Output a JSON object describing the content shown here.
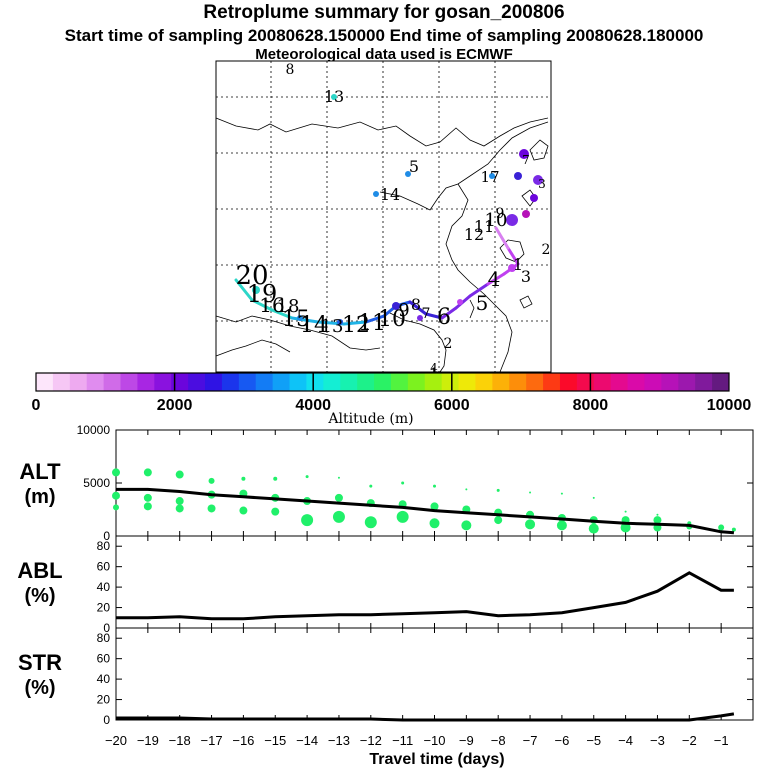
{
  "header": {
    "title": "Retroplume summary for gosan_200806",
    "sampling": "Start time of sampling 20080628.150000     End time of sampling 20080628.180000",
    "met": "Meteorological data used is ECMWF"
  },
  "map": {
    "labels": [
      "8",
      "13",
      "5",
      "14",
      "17",
      "20",
      "19",
      "16",
      "18",
      "15",
      "14",
      "13",
      "12",
      "11",
      "10",
      "9",
      "8",
      "7",
      "6",
      "5",
      "4",
      "3",
      "2",
      "1",
      "12",
      "11",
      "10",
      "9",
      "7",
      "3",
      "2",
      "1",
      "4"
    ],
    "path_colors": [
      "#2cd6c8",
      "#1fb3e6",
      "#1f5ce6",
      "#3a22d6",
      "#7a2ae6",
      "#c040f0",
      "#d880f0"
    ]
  },
  "colorbar": {
    "ticks": [
      "0",
      "2000",
      "4000",
      "6000",
      "8000",
      "10000"
    ],
    "label": "Altitude (m)",
    "colors": [
      "#fde6fb",
      "#f6c7f5",
      "#eeaaf0",
      "#e08cef",
      "#d06be8",
      "#bd48e6",
      "#a826e3",
      "#8a12df",
      "#6b05dc",
      "#4b0de0",
      "#2f13e4",
      "#1b35ec",
      "#1759f2",
      "#137cf5",
      "#10a0f7",
      "#0ec3f7",
      "#11e0ee",
      "#14eed4",
      "#17f1b0",
      "#1df18a",
      "#2af265",
      "#52f33f",
      "#7cf21f",
      "#a6f00f",
      "#cdee0b",
      "#eee908",
      "#fbd208",
      "#fcb108",
      "#fd8e0a",
      "#fd6a0f",
      "#fd3a14",
      "#fb0a2a",
      "#f40a4d",
      "#ec0a6f",
      "#e40a8f",
      "#da0aa9",
      "#cc0cb6",
      "#b612b8",
      "#9c18ae",
      "#801a9c",
      "#641a80"
    ]
  },
  "chart_data": [
    {
      "type": "line",
      "panel": "ALT",
      "ylabel_line1": "ALT",
      "ylabel_line2": "(m)",
      "ylim": [
        0,
        10000
      ],
      "yticks": [
        "10000",
        "5000",
        "0"
      ],
      "ytick_values": [
        10000,
        5000,
        0
      ],
      "x": [
        -20,
        -19,
        -18,
        -17,
        -16,
        -15,
        -14,
        -13,
        -12,
        -11,
        -10,
        -9,
        -8,
        -7,
        -6,
        -5,
        -4,
        -3,
        -2,
        -1,
        -0.6
      ],
      "values": [
        4400,
        4400,
        4200,
        3900,
        3700,
        3500,
        3300,
        3100,
        2900,
        2700,
        2400,
        2200,
        2000,
        1800,
        1600,
        1400,
        1200,
        1100,
        1000,
        400,
        300
      ],
      "dot_series": [
        {
          "name": "upper",
          "x": [
            -20,
            -19,
            -18,
            -17,
            -16,
            -15,
            -14,
            -13,
            -12,
            -11,
            -10,
            -9,
            -8,
            -7,
            -6,
            -5,
            -4,
            -3,
            -2,
            -1,
            -0.6
          ],
          "values": [
            6000,
            6000,
            5800,
            5200,
            5400,
            5400,
            5600,
            5500,
            4700,
            5000,
            4700,
            4400,
            4300,
            4100,
            4000,
            3600,
            2300,
            2000,
            1200,
            900,
            600
          ],
          "sizes": [
            4,
            4,
            4,
            3,
            2,
            2,
            1.5,
            1,
            1.5,
            1.5,
            1.5,
            1,
            1.5,
            1,
            1,
            1,
            1,
            1,
            2,
            2,
            2
          ]
        },
        {
          "name": "mid",
          "x": [
            -20,
            -19,
            -18,
            -17,
            -16,
            -15,
            -14,
            -13,
            -12,
            -11,
            -10,
            -9,
            -8,
            -7,
            -6,
            -5,
            -4,
            -3,
            -2,
            -1
          ],
          "values": [
            3800,
            3600,
            3300,
            3900,
            4000,
            3600,
            3300,
            3600,
            3100,
            3000,
            2800,
            2500,
            2200,
            2000,
            1700,
            1500,
            1500,
            1500,
            900,
            800
          ],
          "sizes": [
            4,
            4,
            4,
            4,
            4,
            4,
            4,
            4,
            4,
            4,
            4,
            4,
            4,
            4,
            4,
            4,
            4,
            4,
            3,
            3
          ]
        },
        {
          "name": "lower",
          "x": [
            -20,
            -19,
            -18,
            -17,
            -16,
            -15,
            -14,
            -13,
            -12,
            -11,
            -10,
            -9,
            -8,
            -7,
            -6,
            -5,
            -4,
            -3
          ],
          "values": [
            2700,
            2800,
            2600,
            2600,
            2400,
            2300,
            1500,
            1800,
            1300,
            1800,
            1200,
            1000,
            1500,
            1100,
            1000,
            700,
            800,
            800
          ],
          "sizes": [
            3,
            4,
            4,
            4,
            4,
            4,
            6,
            6,
            6,
            6,
            5,
            5,
            4,
            5,
            5,
            5,
            5,
            4
          ]
        }
      ]
    },
    {
      "type": "line",
      "panel": "ABL",
      "ylabel_line1": "ABL",
      "ylabel_line2": "(%)",
      "ylim": [
        0,
        90
      ],
      "yticks": [
        "80",
        "60",
        "40",
        "20",
        "0"
      ],
      "ytick_values": [
        80,
        60,
        40,
        20,
        0
      ],
      "x": [
        -20,
        -19,
        -18,
        -17,
        -16,
        -15,
        -14,
        -13,
        -12,
        -11,
        -10,
        -9,
        -8,
        -7,
        -6,
        -5,
        -4,
        -3,
        -2,
        -1,
        -0.6
      ],
      "values": [
        10,
        10,
        11,
        9,
        9,
        11,
        12,
        13,
        13,
        14,
        15,
        16,
        12,
        13,
        15,
        20,
        25,
        36,
        54,
        37,
        37
      ]
    },
    {
      "type": "line",
      "panel": "STR",
      "ylabel_line1": "STR",
      "ylabel_line2": "(%)",
      "ylim": [
        0,
        90
      ],
      "yticks": [
        "80",
        "60",
        "40",
        "20",
        "0"
      ],
      "ytick_values": [
        80,
        60,
        40,
        20,
        0
      ],
      "x": [
        -20,
        -19,
        -18,
        -17,
        -16,
        -15,
        -14,
        -13,
        -12,
        -11,
        -10,
        -9,
        -8,
        -7,
        -6,
        -5,
        -4,
        -3,
        -2,
        -1,
        -0.6
      ],
      "values": [
        2,
        2,
        2,
        1,
        1,
        1,
        1,
        1,
        1,
        0,
        0,
        0,
        0,
        0,
        0,
        0,
        0,
        0,
        0,
        4,
        6
      ]
    }
  ],
  "xaxis": {
    "ticks": [
      -20,
      -19,
      -18,
      -17,
      -16,
      -15,
      -14,
      -13,
      -12,
      -11,
      -10,
      -9,
      -8,
      -7,
      -6,
      -5,
      -4,
      -3,
      -2,
      -1
    ],
    "tick_labels": [
      "−20",
      "−19",
      "−18",
      "−17",
      "−16",
      "−15",
      "−14",
      "−13",
      "−12",
      "−11",
      "−10",
      "−9",
      "−8",
      "−7",
      "−6",
      "−5",
      "−4",
      "−3",
      "−2",
      "−1"
    ],
    "label": "Travel time (days)"
  }
}
